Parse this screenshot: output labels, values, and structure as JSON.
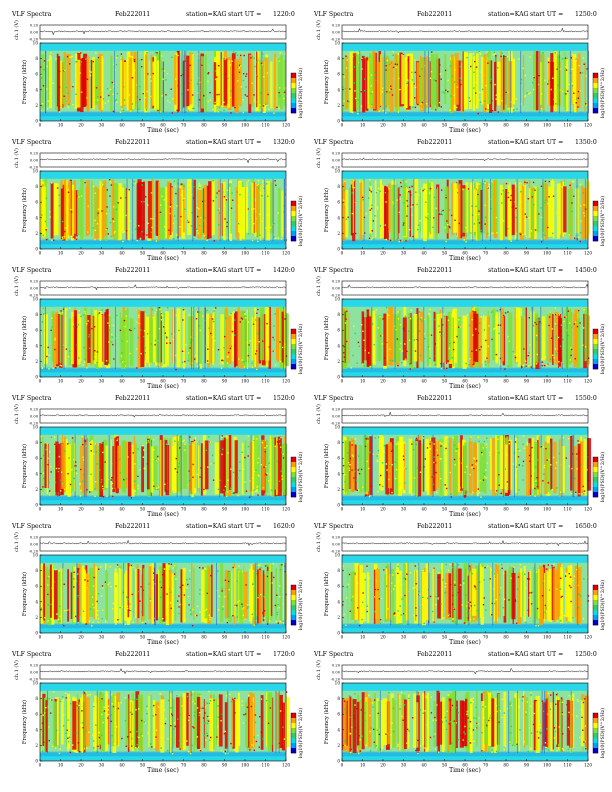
{
  "page": {
    "common": {
      "product": "VLF Spectra",
      "date": "Feb222011",
      "station": "station=KAG",
      "start_prefix": "start  UT  =",
      "x_label": "Time  (sec)",
      "freq_label": "Frequency  (kHz)",
      "ch_label": "ch.1 (V)",
      "colorbar_label": "log10(PSD)(V^2/Hz)",
      "x_ticks": [
        "0",
        "10",
        "20",
        "30",
        "40",
        "50",
        "60",
        "70",
        "80",
        "90",
        "100",
        "110",
        "120"
      ],
      "y_ticks": [
        "0",
        "2",
        "4",
        "6",
        "8",
        "10"
      ],
      "wave_ticks": [
        "0.20",
        "0.00",
        "-0.20"
      ],
      "colorscale": [
        "#0000c8",
        "#00a0ff",
        "#00e0e0",
        "#30d060",
        "#80e030",
        "#ffff00",
        "#ffa000",
        "#e00000"
      ]
    }
  },
  "chart_data": [
    {
      "type": "heatmap",
      "start_ut": "1220:0",
      "xlim": [
        0,
        120
      ],
      "ylim": [
        0,
        10
      ],
      "wave_ylim": [
        -0.2,
        0.2
      ],
      "band_khz": [
        1,
        9
      ]
    },
    {
      "type": "heatmap",
      "start_ut": "1250:0",
      "xlim": [
        0,
        120
      ],
      "ylim": [
        0,
        10
      ],
      "wave_ylim": [
        -0.2,
        0.2
      ],
      "band_khz": [
        1,
        9
      ]
    },
    {
      "type": "heatmap",
      "start_ut": "1320:0",
      "xlim": [
        0,
        120
      ],
      "ylim": [
        0,
        10
      ],
      "wave_ylim": [
        -0.2,
        0.2
      ],
      "band_khz": [
        1,
        9
      ]
    },
    {
      "type": "heatmap",
      "start_ut": "1350:0",
      "xlim": [
        0,
        120
      ],
      "ylim": [
        0,
        10
      ],
      "wave_ylim": [
        -0.2,
        0.2
      ],
      "band_khz": [
        1,
        9
      ]
    },
    {
      "type": "heatmap",
      "start_ut": "1420:0",
      "xlim": [
        0,
        120
      ],
      "ylim": [
        0,
        10
      ],
      "wave_ylim": [
        -0.2,
        0.2
      ],
      "band_khz": [
        1,
        9
      ]
    },
    {
      "type": "heatmap",
      "start_ut": "1450:0",
      "xlim": [
        0,
        120
      ],
      "ylim": [
        0,
        10
      ],
      "wave_ylim": [
        -0.2,
        0.2
      ],
      "band_khz": [
        1,
        9
      ]
    },
    {
      "type": "heatmap",
      "start_ut": "1520:0",
      "xlim": [
        0,
        120
      ],
      "ylim": [
        0,
        10
      ],
      "wave_ylim": [
        -0.2,
        0.2
      ],
      "band_khz": [
        1,
        9
      ]
    },
    {
      "type": "heatmap",
      "start_ut": "1550:0",
      "xlim": [
        0,
        120
      ],
      "ylim": [
        0,
        10
      ],
      "wave_ylim": [
        -0.2,
        0.2
      ],
      "band_khz": [
        1,
        9
      ]
    },
    {
      "type": "heatmap",
      "start_ut": "1620:0",
      "xlim": [
        0,
        120
      ],
      "ylim": [
        0,
        10
      ],
      "wave_ylim": [
        -0.2,
        0.2
      ],
      "band_khz": [
        1,
        9
      ]
    },
    {
      "type": "heatmap",
      "start_ut": "1650:0",
      "xlim": [
        0,
        120
      ],
      "ylim": [
        0,
        10
      ],
      "wave_ylim": [
        -0.2,
        0.2
      ],
      "band_khz": [
        1,
        9
      ]
    },
    {
      "type": "heatmap",
      "start_ut": "1720:0",
      "xlim": [
        0,
        120
      ],
      "ylim": [
        0,
        10
      ],
      "wave_ylim": [
        -0.2,
        0.2
      ],
      "band_khz": [
        1,
        9
      ]
    },
    {
      "type": "heatmap",
      "start_ut": "1250:0",
      "xlim": [
        0,
        120
      ],
      "ylim": [
        0,
        10
      ],
      "wave_ylim": [
        -0.2,
        0.2
      ],
      "band_khz": [
        1,
        9
      ]
    }
  ]
}
